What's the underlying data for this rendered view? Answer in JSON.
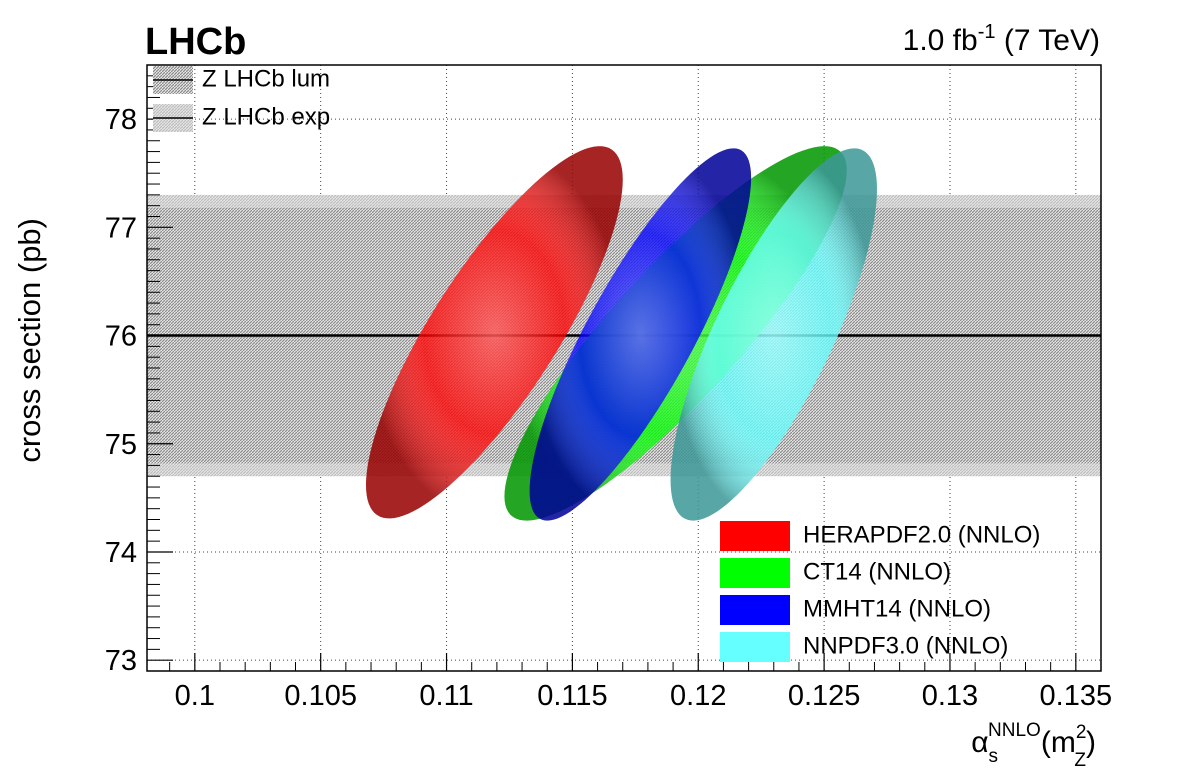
{
  "chart_data": {
    "type": "ellipse",
    "title": "LHCb",
    "annotation_parts": [
      "1.0 fb",
      "-1",
      " (7 TeV)"
    ],
    "y_label": "cross section (pb)",
    "x_label_parts": [
      "α",
      "s",
      "NNLO",
      "(m",
      "2",
      "Z",
      ")"
    ],
    "xlim": [
      0.0981,
      0.136
    ],
    "ylim": [
      72.9,
      78.5
    ],
    "xticks": [
      0.1,
      0.105,
      0.11,
      0.115,
      0.12,
      0.125,
      0.13,
      0.135
    ],
    "yticks": [
      73,
      74,
      75,
      76,
      77,
      78
    ],
    "grid": true,
    "central": 76.0,
    "bands": [
      {
        "name": "Z LHCb lum",
        "low": 74.82,
        "high": 77.18,
        "color": "#8c8c8c"
      },
      {
        "name": "Z LHCb exp",
        "low": 74.7,
        "high": 77.3,
        "color": "#bdbdbd"
      }
    ],
    "series": [
      {
        "name": "HERAPDF2.0 (NNLO)",
        "color": "#ff0000",
        "center_x": 0.1119,
        "x_err": 0.0051,
        "center_y": 76.03,
        "y_err": 1.72,
        "correlation": 0.82
      },
      {
        "name": "CT14 (NNLO)",
        "color": "#00ff00",
        "center_x": 0.1191,
        "x_err": 0.0068,
        "center_y": 76.02,
        "y_err": 1.73,
        "correlation": 0.87
      },
      {
        "name": "MMHT14 (NNLO)",
        "color": "#0000ff",
        "center_x": 0.1177,
        "x_err": 0.0044,
        "center_y": 76.01,
        "y_err": 1.72,
        "correlation": 0.84
      },
      {
        "name": "NNPDF3.0 (NNLO)",
        "color": "#66ffff",
        "center_x": 0.123,
        "x_err": 0.0041,
        "center_y": 76.01,
        "y_err": 1.72,
        "correlation": 0.78
      }
    ],
    "legend_series": "lower right",
    "legend_bands": "upper left"
  }
}
